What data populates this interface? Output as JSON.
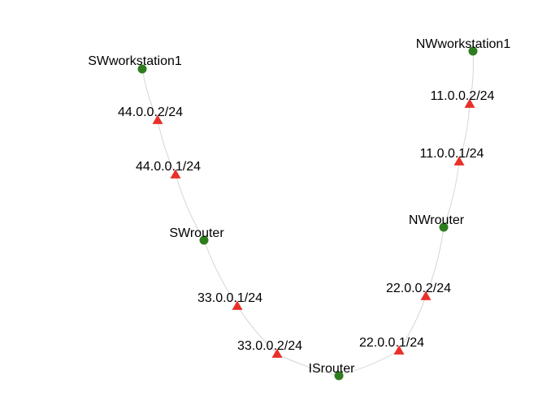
{
  "colors": {
    "host": "#2e7d1e",
    "interface": "#e8302a",
    "edge": "#d6d6d6",
    "text": "#000000"
  },
  "nodes": [
    {
      "id": "sw_ws",
      "label": "SWworkstation1",
      "kind": "host"
    },
    {
      "id": "sw_if2",
      "label": "44.0.0.2/24",
      "kind": "interface"
    },
    {
      "id": "sw_if1",
      "label": "44.0.0.1/24",
      "kind": "interface"
    },
    {
      "id": "sw_router",
      "label": "SWrouter",
      "kind": "host"
    },
    {
      "id": "sw_if33_1",
      "label": "33.0.0.1/24",
      "kind": "interface"
    },
    {
      "id": "sw_if33_2",
      "label": "33.0.0.2/24",
      "kind": "interface"
    },
    {
      "id": "is_router",
      "label": "ISrouter",
      "kind": "host"
    },
    {
      "id": "nw_if22_1",
      "label": "22.0.0.1/24",
      "kind": "interface"
    },
    {
      "id": "nw_if22_2",
      "label": "22.0.0.2/24",
      "kind": "interface"
    },
    {
      "id": "nw_router",
      "label": "NWrouter",
      "kind": "host"
    },
    {
      "id": "nw_if11_1",
      "label": "11.0.0.1/24",
      "kind": "interface"
    },
    {
      "id": "nw_if11_2",
      "label": "11.0.0.2/24",
      "kind": "interface"
    },
    {
      "id": "nw_ws",
      "label": "NWworkstation1",
      "kind": "host"
    }
  ],
  "edges": [
    [
      "sw_ws",
      "sw_if2"
    ],
    [
      "sw_if2",
      "sw_if1"
    ],
    [
      "sw_if1",
      "sw_router"
    ],
    [
      "sw_router",
      "sw_if33_1"
    ],
    [
      "sw_if33_1",
      "sw_if33_2"
    ],
    [
      "sw_if33_2",
      "is_router"
    ],
    [
      "is_router",
      "nw_if22_1"
    ],
    [
      "nw_if22_1",
      "nw_if22_2"
    ],
    [
      "nw_if22_2",
      "nw_router"
    ],
    [
      "nw_router",
      "nw_if11_1"
    ],
    [
      "nw_if11_1",
      "nw_if11_2"
    ],
    [
      "nw_if11_2",
      "nw_ws"
    ]
  ]
}
